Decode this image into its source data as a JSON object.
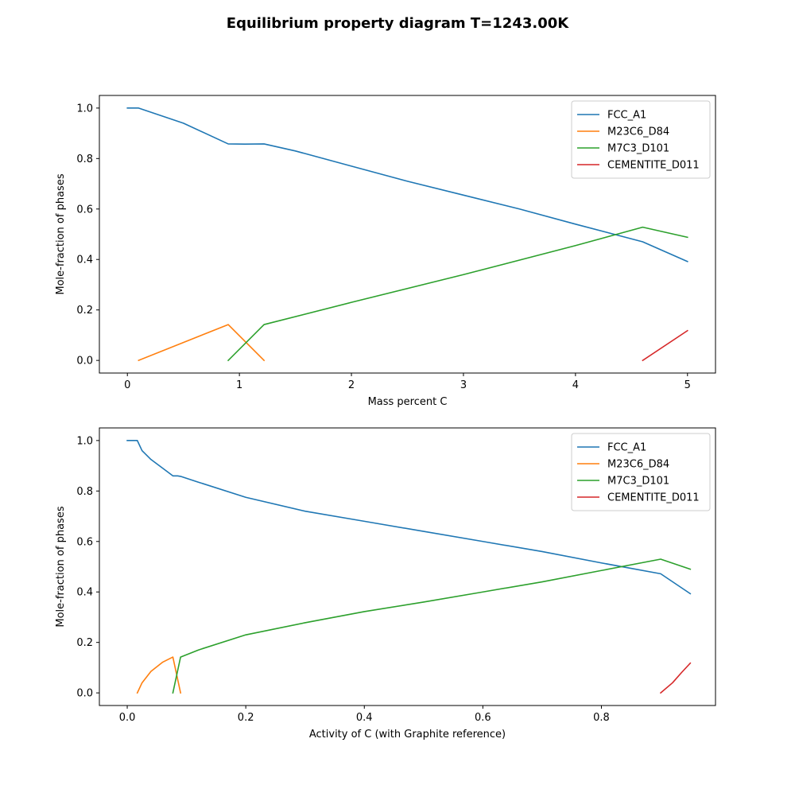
{
  "figure": {
    "title": "Equilibrium property diagram T=1243.00K"
  },
  "chart_data": [
    {
      "type": "line",
      "xlabel": "Mass percent C",
      "ylabel": "Mole-fraction of phases",
      "xlim": [
        -0.25,
        5.25
      ],
      "ylim": [
        -0.05,
        1.05
      ],
      "xticks": [
        0,
        1,
        2,
        3,
        4,
        5
      ],
      "xtick_labels": [
        "0",
        "1",
        "2",
        "3",
        "4",
        "5"
      ],
      "yticks": [
        0.0,
        0.2,
        0.4,
        0.6,
        0.8,
        1.0
      ],
      "ytick_labels": [
        "0.0",
        "0.2",
        "0.4",
        "0.6",
        "0.8",
        "1.0"
      ],
      "grid": false,
      "legend_position": "upper right",
      "series": [
        {
          "name": "FCC_A1",
          "color": "#1f77b4",
          "points": [
            [
              0,
              1.0
            ],
            [
              0.1,
              1.0
            ],
            [
              0.3,
              0.97
            ],
            [
              0.5,
              0.94
            ],
            [
              0.9,
              0.858
            ],
            [
              1.05,
              0.857
            ],
            [
              1.22,
              0.858
            ],
            [
              1.5,
              0.83
            ],
            [
              2,
              0.77
            ],
            [
              2.5,
              0.71
            ],
            [
              3,
              0.655
            ],
            [
              3.5,
              0.6
            ],
            [
              4,
              0.54
            ],
            [
              4.6,
              0.47
            ],
            [
              5.0,
              0.392
            ]
          ]
        },
        {
          "name": "M23C6_D84",
          "color": "#ff7f0e",
          "points": [
            [
              0.1,
              0.0
            ],
            [
              0.9,
              0.142
            ],
            [
              1.22,
              0.0
            ]
          ]
        },
        {
          "name": "M7C3_D101",
          "color": "#2ca02c",
          "points": [
            [
              0.9,
              0.0
            ],
            [
              1.22,
              0.142
            ],
            [
              2,
              0.23
            ],
            [
              3,
              0.34
            ],
            [
              4,
              0.455
            ],
            [
              4.6,
              0.528
            ],
            [
              5.0,
              0.488
            ]
          ]
        },
        {
          "name": "CEMENTITE_D011",
          "color": "#d62728",
          "points": [
            [
              4.6,
              0.0
            ],
            [
              5.0,
              0.118
            ]
          ]
        }
      ]
    },
    {
      "type": "line",
      "xlabel": "Activity of C (with Graphite reference)",
      "ylabel": "Mole-fraction of phases",
      "xlim": [
        -0.047,
        0.9925
      ],
      "ylim": [
        -0.05,
        1.05
      ],
      "xticks": [
        0.0,
        0.2,
        0.4,
        0.6,
        0.8
      ],
      "xtick_labels": [
        "0.0",
        "0.2",
        "0.4",
        "0.6",
        "0.8"
      ],
      "yticks": [
        0.0,
        0.2,
        0.4,
        0.6,
        0.8,
        1.0
      ],
      "ytick_labels": [
        "0.0",
        "0.2",
        "0.4",
        "0.6",
        "0.8",
        "1.0"
      ],
      "grid": false,
      "legend_position": "upper right",
      "series": [
        {
          "name": "FCC_A1",
          "color": "#1f77b4",
          "points": [
            [
              0,
              1.0
            ],
            [
              0.017,
              1.0
            ],
            [
              0.025,
              0.96
            ],
            [
              0.04,
              0.925
            ],
            [
              0.06,
              0.89
            ],
            [
              0.077,
              0.86
            ],
            [
              0.085,
              0.86
            ],
            [
              0.09,
              0.858
            ],
            [
              0.12,
              0.835
            ],
            [
              0.2,
              0.775
            ],
            [
              0.3,
              0.72
            ],
            [
              0.4,
              0.68
            ],
            [
              0.5,
              0.64
            ],
            [
              0.6,
              0.6
            ],
            [
              0.7,
              0.56
            ],
            [
              0.8,
              0.515
            ],
            [
              0.9,
              0.472
            ],
            [
              0.95,
              0.393
            ]
          ]
        },
        {
          "name": "M23C6_D84",
          "color": "#ff7f0e",
          "points": [
            [
              0.017,
              0.0
            ],
            [
              0.025,
              0.04
            ],
            [
              0.04,
              0.085
            ],
            [
              0.06,
              0.122
            ],
            [
              0.077,
              0.142
            ],
            [
              0.09,
              0.0
            ]
          ]
        },
        {
          "name": "M7C3_D101",
          "color": "#2ca02c",
          "points": [
            [
              0.077,
              0.0
            ],
            [
              0.09,
              0.142
            ],
            [
              0.12,
              0.17
            ],
            [
              0.2,
              0.23
            ],
            [
              0.3,
              0.278
            ],
            [
              0.4,
              0.322
            ],
            [
              0.5,
              0.36
            ],
            [
              0.6,
              0.4
            ],
            [
              0.7,
              0.44
            ],
            [
              0.8,
              0.485
            ],
            [
              0.9,
              0.53
            ],
            [
              0.95,
              0.49
            ]
          ]
        },
        {
          "name": "CEMENTITE_D011",
          "color": "#d62728",
          "points": [
            [
              0.9,
              0.0
            ],
            [
              0.92,
              0.04
            ],
            [
              0.935,
              0.08
            ],
            [
              0.95,
              0.118
            ]
          ]
        }
      ]
    }
  ]
}
